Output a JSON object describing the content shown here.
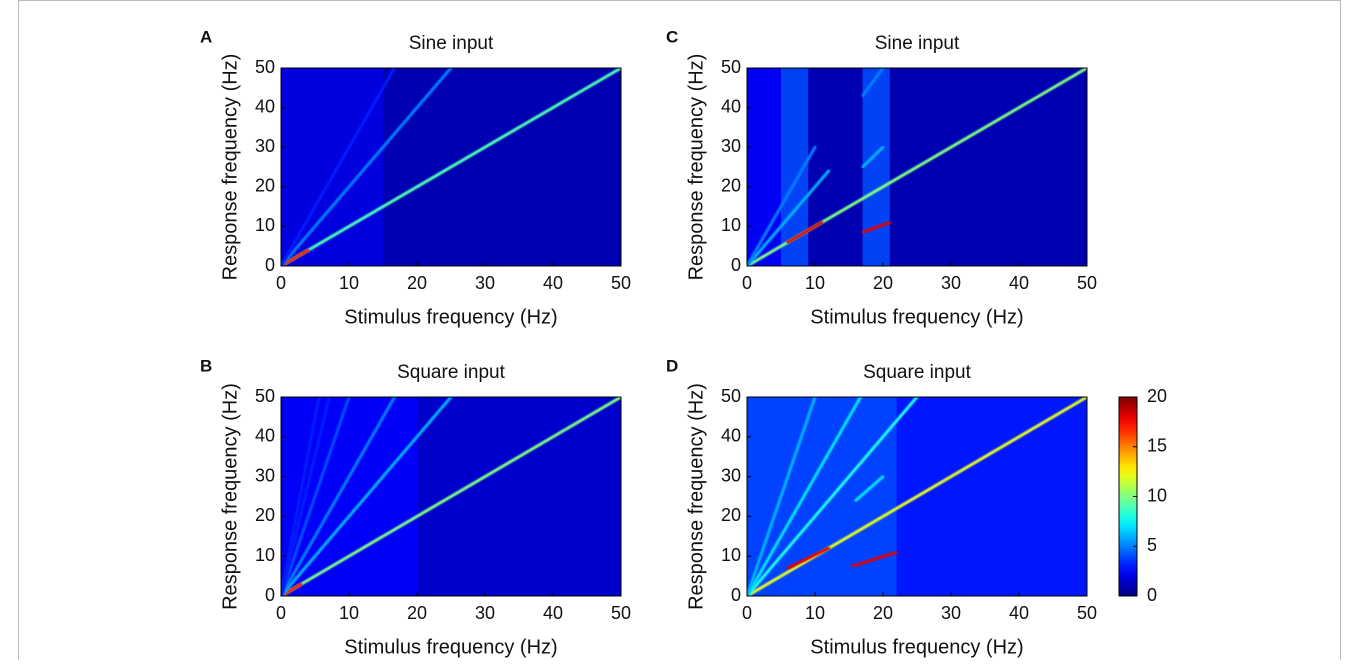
{
  "chart_data": [
    {
      "type": "heatmap",
      "panel": "A",
      "title": "Sine input",
      "xlabel": "Stimulus frequency (Hz)",
      "ylabel": "Response frequency (Hz)",
      "xlim": [
        0,
        50
      ],
      "xticks": [
        0,
        10,
        20,
        30,
        40,
        50
      ],
      "ylim": [
        0,
        50
      ],
      "yticks": [
        0,
        10,
        20,
        30,
        40,
        50
      ],
      "colormap": "jet",
      "background": 1,
      "bands": [
        {
          "x": [
            0,
            15
          ],
          "value": 2
        }
      ],
      "ridges": [
        {
          "x": [
            0,
            50
          ],
          "y": [
            0,
            50
          ],
          "value": 9
        },
        {
          "x": [
            0,
            4
          ],
          "y": [
            0,
            4
          ],
          "value": 17
        },
        {
          "x": [
            0,
            25
          ],
          "y": [
            0,
            50
          ],
          "value": 5
        },
        {
          "x": [
            0,
            16.7
          ],
          "y": [
            0,
            50
          ],
          "value": 3
        }
      ]
    },
    {
      "type": "heatmap",
      "panel": "B",
      "title": "Square input",
      "xlabel": "Stimulus frequency (Hz)",
      "ylabel": "Response frequency (Hz)",
      "xlim": [
        0,
        50
      ],
      "xticks": [
        0,
        10,
        20,
        30,
        40,
        50
      ],
      "ylim": [
        0,
        50
      ],
      "yticks": [
        0,
        10,
        20,
        30,
        40,
        50
      ],
      "colormap": "jet",
      "background": 1.5,
      "bands": [
        {
          "x": [
            0,
            20
          ],
          "value": 2.5
        }
      ],
      "ridges": [
        {
          "x": [
            0,
            50
          ],
          "y": [
            0,
            50
          ],
          "value": 10
        },
        {
          "x": [
            0,
            3
          ],
          "y": [
            0,
            3
          ],
          "value": 17
        },
        {
          "x": [
            0,
            25
          ],
          "y": [
            0,
            50
          ],
          "value": 6
        },
        {
          "x": [
            0,
            16.7
          ],
          "y": [
            0,
            50
          ],
          "value": 5
        },
        {
          "x": [
            0,
            10
          ],
          "y": [
            0,
            50
          ],
          "value": 4
        },
        {
          "x": [
            0,
            7.1
          ],
          "y": [
            0,
            50
          ],
          "value": 3
        },
        {
          "x": [
            0,
            5.6
          ],
          "y": [
            0,
            50
          ],
          "value": 3
        }
      ]
    },
    {
      "type": "heatmap",
      "panel": "C",
      "title": "Sine input",
      "xlabel": "Stimulus frequency (Hz)",
      "ylabel": "Response frequency (Hz)",
      "xlim": [
        0,
        50
      ],
      "xticks": [
        0,
        10,
        20,
        30,
        40,
        50
      ],
      "ylim": [
        0,
        50
      ],
      "yticks": [
        0,
        10,
        20,
        30,
        40,
        50
      ],
      "colormap": "jet",
      "background": 1,
      "bands": [
        {
          "x": [
            0,
            5
          ],
          "value": 2.5
        },
        {
          "x": [
            5,
            9
          ],
          "value": 4
        },
        {
          "x": [
            17,
            21
          ],
          "value": 4
        }
      ],
      "ridges": [
        {
          "x": [
            0,
            50
          ],
          "y": [
            0,
            50
          ],
          "value": 10
        },
        {
          "x": [
            6,
            11
          ],
          "y": [
            6,
            11
          ],
          "value": 18
        },
        {
          "x": [
            17,
            21
          ],
          "y": [
            8.5,
            11
          ],
          "value": 18
        },
        {
          "x": [
            0,
            12
          ],
          "y": [
            0,
            24
          ],
          "value": 6
        },
        {
          "x": [
            0,
            10
          ],
          "y": [
            0,
            30
          ],
          "value": 5
        },
        {
          "x": [
            17,
            20
          ],
          "y": [
            25,
            30
          ],
          "value": 6
        },
        {
          "x": [
            17,
            20
          ],
          "y": [
            43,
            50
          ],
          "value": 5
        }
      ]
    },
    {
      "type": "heatmap",
      "panel": "D",
      "title": "Square input",
      "xlabel": "Stimulus frequency (Hz)",
      "ylabel": "Response frequency (Hz)",
      "xlim": [
        0,
        50
      ],
      "xticks": [
        0,
        10,
        20,
        30,
        40,
        50
      ],
      "ylim": [
        0,
        50
      ],
      "yticks": [
        0,
        10,
        20,
        30,
        40,
        50
      ],
      "colormap": "jet",
      "background": 2.5,
      "zlim": [
        0,
        20
      ],
      "zticks": [
        0,
        5,
        10,
        15,
        20
      ],
      "bands": [
        {
          "x": [
            0,
            22
          ],
          "value": 4
        },
        {
          "x": [
            22,
            50
          ],
          "value": 3
        }
      ],
      "ridges": [
        {
          "x": [
            0,
            50
          ],
          "y": [
            0,
            50
          ],
          "value": 12
        },
        {
          "x": [
            6,
            12
          ],
          "y": [
            7,
            12
          ],
          "value": 18
        },
        {
          "x": [
            15.5,
            22
          ],
          "y": [
            7.5,
            11
          ],
          "value": 18
        },
        {
          "x": [
            0,
            25
          ],
          "y": [
            0,
            50
          ],
          "value": 8
        },
        {
          "x": [
            0,
            16.7
          ],
          "y": [
            0,
            50
          ],
          "value": 7
        },
        {
          "x": [
            0,
            10
          ],
          "y": [
            0,
            50
          ],
          "value": 6
        },
        {
          "x": [
            16,
            20
          ],
          "y": [
            24,
            30
          ],
          "value": 7
        }
      ]
    }
  ]
}
